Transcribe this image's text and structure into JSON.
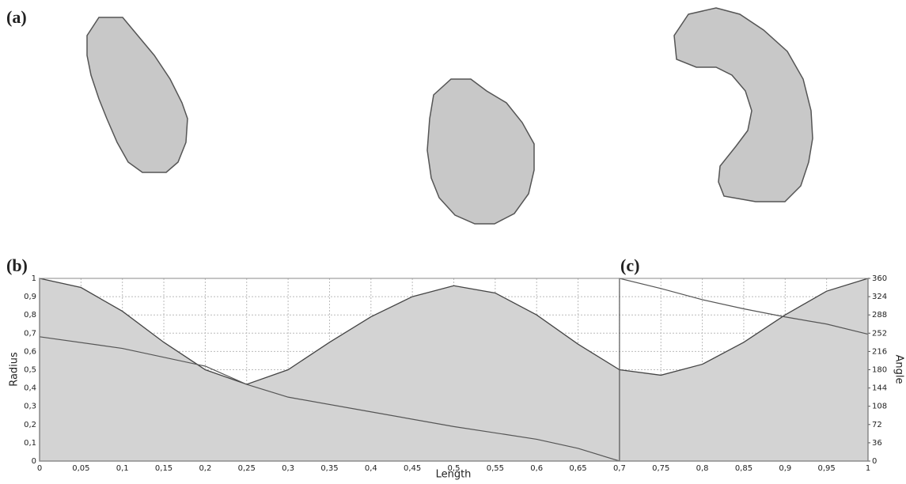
{
  "chart_data": {
    "type": "area",
    "panel_labels": [
      "(a)",
      "(b)",
      "(c)"
    ],
    "x_label": "Length",
    "y_label": "Radius",
    "y2_label": "Angle",
    "grid": true,
    "xlim": [
      0,
      1
    ],
    "ylim": [
      0,
      1
    ],
    "y2lim": [
      0,
      360
    ],
    "xticks": [
      0,
      {
        "value": 0.05,
        "label": "0,05"
      },
      {
        "value": 0.1,
        "label": "0,1"
      },
      {
        "value": 0.15,
        "label": "0,15"
      },
      {
        "value": 0.2,
        "label": "0,2"
      },
      {
        "value": 0.25,
        "label": "0,25"
      },
      {
        "value": 0.3,
        "label": "0,3"
      },
      {
        "value": 0.35,
        "label": "0,35"
      },
      {
        "value": 0.4,
        "label": "0,4"
      },
      {
        "value": 0.45,
        "label": "0,45"
      },
      {
        "value": 0.5,
        "label": "0,5"
      },
      {
        "value": 0.55,
        "label": "0,55"
      },
      {
        "value": 0.6,
        "label": "0,6"
      },
      {
        "value": 0.65,
        "label": "0,65"
      },
      {
        "value": 0.7,
        "label": "0,7"
      },
      {
        "value": 0.75,
        "label": "0,75"
      },
      {
        "value": 0.8,
        "label": "0,8"
      },
      {
        "value": 0.85,
        "label": "0,85"
      },
      {
        "value": 0.9,
        "label": "0,9"
      },
      {
        "value": 0.95,
        "label": "0,95"
      },
      1
    ],
    "yticks": [
      0,
      {
        "value": 0.1,
        "label": "0,1"
      },
      {
        "value": 0.2,
        "label": "0,2"
      },
      {
        "value": 0.3,
        "label": "0,3"
      },
      {
        "value": 0.4,
        "label": "0,4"
      },
      {
        "value": 0.5,
        "label": "0,5"
      },
      {
        "value": 0.6,
        "label": "0,6"
      },
      {
        "value": 0.7,
        "label": "0,7"
      },
      {
        "value": 0.8,
        "label": "0,8"
      },
      {
        "value": 0.9,
        "label": "0,9"
      },
      1
    ],
    "y2ticks": [
      0,
      36,
      72,
      108,
      144,
      180,
      216,
      252,
      288,
      324,
      360
    ],
    "series": [
      {
        "color": "#d3d3d3",
        "x": [
          0,
          0.05,
          0.1,
          0.15,
          0.2,
          0.25,
          0.3,
          0.35,
          0.4,
          0.45,
          0.5,
          0.55,
          0.6,
          0.65,
          0.7,
          0.75,
          0.8,
          0.85,
          0.9,
          0.95,
          1
        ],
        "values": [
          1.0,
          0.95,
          0.82,
          0.65,
          0.5,
          0.42,
          0.5,
          0.65,
          0.79,
          0.9,
          0.96,
          0.92,
          0.8,
          0.64,
          0.5,
          0.47,
          0.53,
          0.65,
          0.8,
          0.93,
          1.0
        ]
      },
      {
        "color": "#555555",
        "axis": "y2",
        "x": [
          0,
          0.1,
          0.2,
          0.25,
          0.3,
          0.4,
          0.5,
          0.6,
          0.65,
          0.7,
          0.7,
          0.75,
          0.8,
          0.85,
          0.9,
          0.95,
          1
        ],
        "values": [
          245,
          222,
          187,
          151,
          126,
          97,
          68,
          43,
          25,
          0,
          360,
          340,
          318,
          300,
          284,
          270,
          250
        ]
      }
    ]
  }
}
